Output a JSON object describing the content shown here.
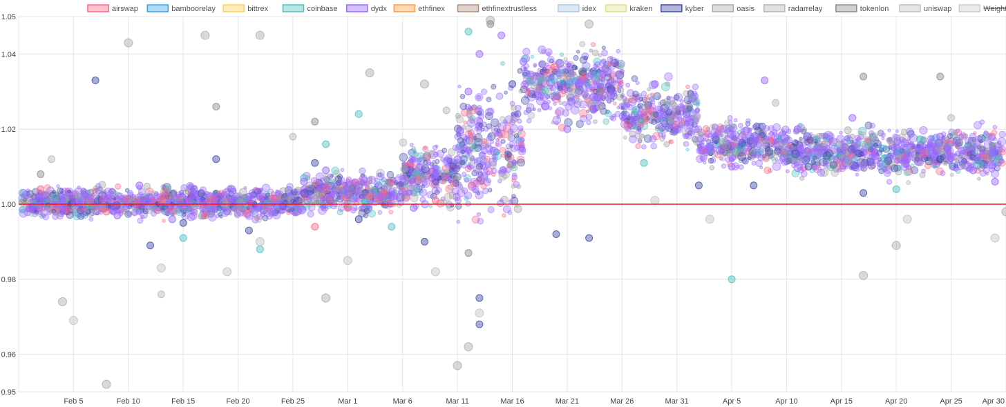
{
  "chart_data": {
    "type": "scatter",
    "title": "",
    "xlabel": "",
    "ylabel": "",
    "grid": true,
    "legend_position": "top",
    "ylim": [
      0.95,
      1.05
    ],
    "xlim": [
      "2020-01-31",
      "2020-04-30"
    ],
    "y_ticks": [
      "0.95",
      "0.96",
      "0.98",
      "1.00",
      "1.02",
      "1.04",
      "1.05"
    ],
    "x_ticks": [
      {
        "label": "Feb 5",
        "date": "2020-02-05"
      },
      {
        "label": "Feb 10",
        "date": "2020-02-10"
      },
      {
        "label": "Feb 15",
        "date": "2020-02-15"
      },
      {
        "label": "Feb 20",
        "date": "2020-02-20"
      },
      {
        "label": "Feb 25",
        "date": "2020-02-25"
      },
      {
        "label": "Mar 1",
        "date": "2020-03-01"
      },
      {
        "label": "Mar 6",
        "date": "2020-03-06"
      },
      {
        "label": "Mar 11",
        "date": "2020-03-11"
      },
      {
        "label": "Mar 16",
        "date": "2020-03-16"
      },
      {
        "label": "Mar 21",
        "date": "2020-03-21"
      },
      {
        "label": "Mar 26",
        "date": "2020-03-26"
      },
      {
        "label": "Mar 31",
        "date": "2020-03-31"
      },
      {
        "label": "Apr 5",
        "date": "2020-04-05"
      },
      {
        "label": "Apr 10",
        "date": "2020-04-10"
      },
      {
        "label": "Apr 15",
        "date": "2020-04-15"
      },
      {
        "label": "Apr 20",
        "date": "2020-04-20"
      },
      {
        "label": "Apr 25",
        "date": "2020-04-25"
      },
      {
        "label": "Apr 30",
        "date": "2020-04-30"
      }
    ],
    "reference_line": {
      "y": 1.0,
      "color": "#e31a1c"
    },
    "series": [
      {
        "name": "airswap",
        "color": "#ff6384",
        "points": [
          [
            "2020-02-02",
            1.004
          ],
          [
            "2020-02-08",
            0.998
          ],
          [
            "2020-02-13",
            1.001
          ],
          [
            "2020-02-17",
            0.997
          ],
          [
            "2020-02-27",
            0.994
          ],
          [
            "2020-03-01",
            0.999
          ],
          [
            "2020-03-03",
            1.002
          ],
          [
            "2020-03-09",
            1.001
          ]
        ]
      },
      {
        "name": "bamboorelay",
        "color": "#36a2eb",
        "points": []
      },
      {
        "name": "bittrex",
        "color": "#ffce56",
        "points": []
      },
      {
        "name": "coinbase",
        "color": "#4bc0c0",
        "points": [
          [
            "2020-02-15",
            0.991
          ],
          [
            "2020-02-22",
            0.988
          ],
          [
            "2020-02-26",
            1.007
          ],
          [
            "2020-02-28",
            1.016
          ],
          [
            "2020-03-02",
            1.024
          ],
          [
            "2020-03-05",
            0.994
          ],
          [
            "2020-03-12",
            1.046
          ],
          [
            "2020-03-28",
            1.011
          ],
          [
            "2020-04-05",
            0.98
          ],
          [
            "2020-04-20",
            1.004
          ]
        ]
      },
      {
        "name": "dydx",
        "color": "#9966ff",
        "points": [
          [
            "2020-02-01",
            0.999
          ],
          [
            "2020-02-04",
            1.001
          ],
          [
            "2020-02-06",
            1.003
          ],
          [
            "2020-02-09",
            0.997
          ],
          [
            "2020-02-11",
            1.005
          ],
          [
            "2020-02-14",
            0.996
          ],
          [
            "2020-02-16",
            1.004
          ],
          [
            "2020-02-19",
            0.998
          ],
          [
            "2020-02-21",
            1.002
          ],
          [
            "2020-02-24",
            1.0
          ],
          [
            "2020-02-26",
            1.006
          ],
          [
            "2020-02-28",
            1.009
          ],
          [
            "2020-03-01",
            1.004
          ],
          [
            "2020-03-04",
            1.002
          ],
          [
            "2020-03-07",
            0.999
          ],
          [
            "2020-03-09",
            1.008
          ],
          [
            "2020-03-11",
            1.012
          ],
          [
            "2020-03-12",
            1.03
          ],
          [
            "2020-03-13",
            1.04
          ],
          [
            "2020-03-15",
            1.045
          ],
          [
            "2020-03-17",
            1.038
          ],
          [
            "2020-03-19",
            1.026
          ],
          [
            "2020-03-21",
            1.02
          ],
          [
            "2020-03-23",
            1.034
          ],
          [
            "2020-03-25",
            1.029
          ],
          [
            "2020-03-27",
            1.022
          ],
          [
            "2020-03-29",
            1.032
          ],
          [
            "2020-03-31",
            1.02
          ],
          [
            "2020-04-03",
            1.015
          ],
          [
            "2020-04-05",
            1.01
          ],
          [
            "2020-04-07",
            1.017
          ],
          [
            "2020-04-08",
            1.033
          ],
          [
            "2020-04-11",
            1.02
          ],
          [
            "2020-04-13",
            1.015
          ],
          [
            "2020-04-16",
            1.023
          ],
          [
            "2020-04-18",
            1.014
          ],
          [
            "2020-04-21",
            1.012
          ],
          [
            "2020-04-24",
            1.018
          ],
          [
            "2020-04-27",
            1.009
          ],
          [
            "2020-04-29",
            1.006
          ]
        ]
      },
      {
        "name": "ethfinex",
        "color": "#ff9f40",
        "points": []
      },
      {
        "name": "ethfinextrustless",
        "color": "#b08c7e",
        "points": []
      },
      {
        "name": "idex",
        "color": "#a8c8e8",
        "points": []
      },
      {
        "name": "kraken",
        "color": "#dfe08a",
        "points": []
      },
      {
        "name": "kyber",
        "color": "#3f4aa6",
        "points": [
          [
            "2020-02-07",
            1.033
          ],
          [
            "2020-02-12",
            0.989
          ],
          [
            "2020-02-15",
            0.995
          ],
          [
            "2020-02-18",
            1.012
          ],
          [
            "2020-02-21",
            0.993
          ],
          [
            "2020-02-27",
            1.011
          ],
          [
            "2020-03-02",
            0.996
          ],
          [
            "2020-03-08",
            0.99
          ],
          [
            "2020-03-13",
            0.975
          ],
          [
            "2020-03-13",
            0.968
          ],
          [
            "2020-03-16",
            1.032
          ],
          [
            "2020-03-20",
            0.992
          ],
          [
            "2020-03-23",
            0.991
          ],
          [
            "2020-04-02",
            1.005
          ],
          [
            "2020-04-07",
            1.005
          ],
          [
            "2020-04-12",
            1.01
          ],
          [
            "2020-04-17",
            1.003
          ],
          [
            "2020-04-24",
            1.012
          ]
        ]
      },
      {
        "name": "oasis",
        "color": "#aaaaaa",
        "points": [
          [
            "2020-02-04",
            0.974
          ],
          [
            "2020-02-08",
            0.952
          ],
          [
            "2020-02-10",
            1.043
          ],
          [
            "2020-02-17",
            1.045
          ],
          [
            "2020-02-22",
            1.045
          ],
          [
            "2020-02-28",
            0.975
          ],
          [
            "2020-03-03",
            1.035
          ],
          [
            "2020-03-08",
            1.032
          ],
          [
            "2020-03-11",
            0.957
          ],
          [
            "2020-03-12",
            0.962
          ],
          [
            "2020-03-14",
            1.049
          ],
          [
            "2020-03-23",
            1.048
          ],
          [
            "2020-04-17",
            0.981
          ],
          [
            "2020-04-20",
            0.989
          ],
          [
            "2020-04-30",
            0.998
          ]
        ]
      },
      {
        "name": "radarrelay",
        "color": "#b5b5b5",
        "points": [
          [
            "2020-02-03",
            1.012
          ],
          [
            "2020-02-13",
            0.976
          ],
          [
            "2020-02-25",
            1.018
          ],
          [
            "2020-03-10",
            1.025
          ],
          [
            "2020-03-24",
            1.026
          ],
          [
            "2020-04-09",
            1.027
          ],
          [
            "2020-04-25",
            1.023
          ]
        ]
      },
      {
        "name": "tokenlon",
        "color": "#8a8a8a",
        "points": [
          [
            "2020-02-02",
            1.008
          ],
          [
            "2020-02-18",
            1.026
          ],
          [
            "2020-02-27",
            1.022
          ],
          [
            "2020-03-12",
            0.987
          ],
          [
            "2020-03-14",
            1.048
          ],
          [
            "2020-03-24",
            1.03
          ],
          [
            "2020-04-17",
            1.034
          ],
          [
            "2020-04-24",
            1.034
          ]
        ]
      },
      {
        "name": "uniswap",
        "color": "#c0c0c0",
        "points": [
          [
            "2020-02-05",
            0.969
          ],
          [
            "2020-02-13",
            0.983
          ],
          [
            "2020-02-19",
            0.982
          ],
          [
            "2020-02-22",
            0.99
          ],
          [
            "2020-03-01",
            0.985
          ],
          [
            "2020-03-09",
            0.982
          ],
          [
            "2020-03-13",
            0.971
          ],
          [
            "2020-03-29",
            1.001
          ],
          [
            "2020-04-03",
            0.996
          ],
          [
            "2020-04-21",
            0.996
          ],
          [
            "2020-04-29",
            0.991
          ]
        ]
      },
      {
        "name": "Weighted Average (Daily)",
        "color": "#cccccc",
        "hidden": true,
        "points": []
      }
    ]
  }
}
